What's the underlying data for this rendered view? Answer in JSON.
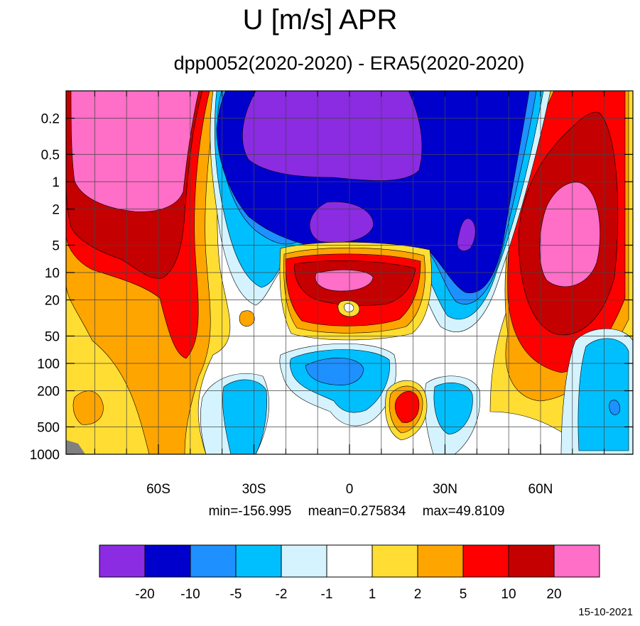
{
  "chart_data": {
    "type": "heatmap",
    "title": "U [m/s] APR",
    "subtitle": "dpp0052(2020-2020) - ERA5(2020-2020)",
    "x_ticks": [
      "60S",
      "30S",
      "0",
      "30N",
      "60N"
    ],
    "x_tick_values": [
      -60,
      -30,
      0,
      30,
      60
    ],
    "xlim": [
      -89,
      89
    ],
    "y_ticks": [
      "0.2",
      "0.5",
      "1",
      "2",
      "5",
      "10",
      "20",
      "50",
      "100",
      "200",
      "500",
      "1000"
    ],
    "y_tick_values": [
      0.2,
      0.5,
      1,
      2,
      5,
      10,
      20,
      50,
      100,
      200,
      500,
      1000
    ],
    "ylim": [
      0.1,
      1000
    ],
    "y_scale": "log",
    "y_reversed": true,
    "grid": true,
    "stats": {
      "min": "min=-156.995",
      "mean": "mean=0.275834",
      "max": "max=49.8109"
    },
    "colorbar": {
      "labels": [
        "-20",
        "-10",
        "-5",
        "-2",
        "-1",
        "1",
        "2",
        "5",
        "10",
        "20"
      ],
      "colors": [
        "#8b2be2",
        "#0000cd",
        "#1e90ff",
        "#00bfff",
        "#d4f3ff",
        "#ffffff",
        "#ffdd33",
        "#ffa500",
        "#ff0000",
        "#c40000",
        "#ff6ec7"
      ]
    },
    "missing_color": "#808080"
  },
  "footer": {
    "date": "15-10-2021"
  }
}
